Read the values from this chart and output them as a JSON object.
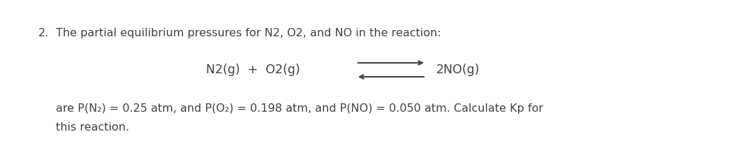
{
  "background_color": "#ffffff",
  "fig_width": 10.8,
  "fig_height": 2.22,
  "dpi": 100,
  "line1_number": "2.",
  "line1_body": "The partial equilibrium pressures for N2, O2, and NO in the reaction:",
  "eq_left": "N2(g)  +  O2(g)",
  "eq_right": "2NO(g)",
  "line3": "are P(N₂) = 0.25 atm, and P(O₂) = 0.198 atm, and P(NO) = 0.050 atm. Calculate Kp for",
  "line4": "this reaction.",
  "font_size": 11.5,
  "eq_font_size": 12.5,
  "text_color": "#404040",
  "font_family": "DejaVu Sans"
}
